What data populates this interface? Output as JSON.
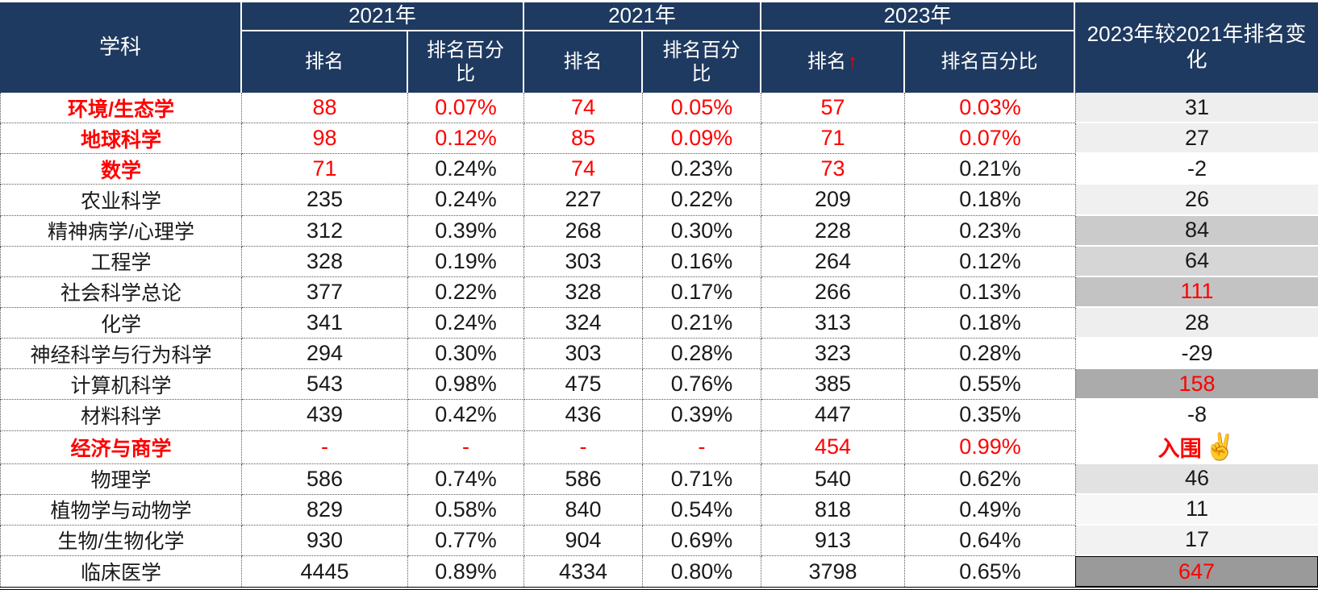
{
  "colors": {
    "header_bg": "#1f3a60",
    "header_text": "#ffffff",
    "accent_red": "#ff0000",
    "text": "#1a1a1a"
  },
  "table": {
    "header": {
      "subject_label": "学科",
      "groups": [
        {
          "year": "2021年",
          "rank": "排名",
          "pct": "排名百分比",
          "arrow": ""
        },
        {
          "year": "2021年",
          "rank": "排名",
          "pct": "排名百分比",
          "arrow": ""
        },
        {
          "year": "2023年",
          "rank": "排名",
          "pct": "排名百分比",
          "arrow": "↑"
        }
      ],
      "change_label": "2023年较2021年排名变化"
    },
    "rows": [
      {
        "subject": "环境/生态学",
        "subject_red": true,
        "values": [
          "88",
          "0.07%",
          "74",
          "0.05%",
          "57",
          "0.03%"
        ],
        "value_red": [
          true,
          true,
          true,
          true,
          true,
          true
        ],
        "change": "31",
        "change_red": false,
        "change_bold": false,
        "change_bg": "#eeeeee"
      },
      {
        "subject": "地球科学",
        "subject_red": true,
        "values": [
          "98",
          "0.12%",
          "85",
          "0.09%",
          "71",
          "0.07%"
        ],
        "value_red": [
          true,
          true,
          true,
          true,
          true,
          true
        ],
        "change": "27",
        "change_red": false,
        "change_bold": false,
        "change_bg": "#efefef"
      },
      {
        "subject": "数学",
        "subject_red": true,
        "values": [
          "71",
          "0.24%",
          "74",
          "0.23%",
          "73",
          "0.21%"
        ],
        "value_red": [
          true,
          false,
          true,
          false,
          true,
          false
        ],
        "change": "-2",
        "change_red": false,
        "change_bold": false,
        "change_bg": "#ffffff"
      },
      {
        "subject": "农业科学",
        "subject_red": false,
        "values": [
          "235",
          "0.24%",
          "227",
          "0.22%",
          "209",
          "0.18%"
        ],
        "value_red": [
          false,
          false,
          false,
          false,
          false,
          false
        ],
        "change": "26",
        "change_red": false,
        "change_bold": false,
        "change_bg": "#f0f0f0"
      },
      {
        "subject": "精神病学/心理学",
        "subject_red": false,
        "values": [
          "312",
          "0.39%",
          "268",
          "0.30%",
          "228",
          "0.23%"
        ],
        "value_red": [
          false,
          false,
          false,
          false,
          false,
          false
        ],
        "change": "84",
        "change_red": false,
        "change_bold": false,
        "change_bg": "#cbcbcb"
      },
      {
        "subject": "工程学",
        "subject_red": false,
        "values": [
          "328",
          "0.19%",
          "303",
          "0.16%",
          "264",
          "0.12%"
        ],
        "value_red": [
          false,
          false,
          false,
          false,
          false,
          false
        ],
        "change": "64",
        "change_red": false,
        "change_bold": false,
        "change_bg": "#d6d6d6"
      },
      {
        "subject": "社会科学总论",
        "subject_red": false,
        "values": [
          "377",
          "0.22%",
          "328",
          "0.17%",
          "266",
          "0.13%"
        ],
        "value_red": [
          false,
          false,
          false,
          false,
          false,
          false
        ],
        "change": "111",
        "change_red": true,
        "change_bold": false,
        "change_bg": "#c3c3c3"
      },
      {
        "subject": "化学",
        "subject_red": false,
        "values": [
          "341",
          "0.24%",
          "324",
          "0.21%",
          "313",
          "0.18%"
        ],
        "value_red": [
          false,
          false,
          false,
          false,
          false,
          false
        ],
        "change": "28",
        "change_red": false,
        "change_bold": false,
        "change_bg": "#eeeeee"
      },
      {
        "subject": "神经科学与行为科学",
        "subject_red": false,
        "values": [
          "294",
          "0.30%",
          "303",
          "0.28%",
          "323",
          "0.28%"
        ],
        "value_red": [
          false,
          false,
          false,
          false,
          false,
          false
        ],
        "change": "-29",
        "change_red": false,
        "change_bold": false,
        "change_bg": "#ffffff"
      },
      {
        "subject": "计算机科学",
        "subject_red": false,
        "values": [
          "543",
          "0.98%",
          "475",
          "0.76%",
          "385",
          "0.55%"
        ],
        "value_red": [
          false,
          false,
          false,
          false,
          false,
          false
        ],
        "change": "158",
        "change_red": true,
        "change_bold": false,
        "change_bg": "#ababab"
      },
      {
        "subject": "材料科学",
        "subject_red": false,
        "values": [
          "439",
          "0.42%",
          "436",
          "0.39%",
          "447",
          "0.35%"
        ],
        "value_red": [
          false,
          false,
          false,
          false,
          false,
          false
        ],
        "change": "-8",
        "change_red": false,
        "change_bold": false,
        "change_bg": "#ffffff"
      },
      {
        "subject": "经济与商学",
        "subject_red": true,
        "values": [
          "-",
          "-",
          "-",
          "-",
          "454",
          "0.99%"
        ],
        "value_red": [
          true,
          true,
          true,
          true,
          true,
          true
        ],
        "change": "入围",
        "change_red": true,
        "change_bold": true,
        "change_bg": "#ffffff",
        "change_emoji": "✌️"
      },
      {
        "subject": "物理学",
        "subject_red": false,
        "values": [
          "586",
          "0.74%",
          "586",
          "0.71%",
          "540",
          "0.62%"
        ],
        "value_red": [
          false,
          false,
          false,
          false,
          false,
          false
        ],
        "change": "46",
        "change_red": false,
        "change_bold": false,
        "change_bg": "#e2e2e2"
      },
      {
        "subject": "植物学与动物学",
        "subject_red": false,
        "values": [
          "829",
          "0.58%",
          "840",
          "0.54%",
          "818",
          "0.49%"
        ],
        "value_red": [
          false,
          false,
          false,
          false,
          false,
          false
        ],
        "change": "11",
        "change_red": false,
        "change_bold": false,
        "change_bg": "#f7f7f7"
      },
      {
        "subject": "生物/生物化学",
        "subject_red": false,
        "values": [
          "930",
          "0.77%",
          "904",
          "0.69%",
          "913",
          "0.64%"
        ],
        "value_red": [
          false,
          false,
          false,
          false,
          false,
          false
        ],
        "change": "17",
        "change_red": false,
        "change_bold": false,
        "change_bg": "#f2f2f2"
      },
      {
        "subject": "临床医学",
        "subject_red": false,
        "values": [
          "4445",
          "0.89%",
          "4334",
          "0.80%",
          "3798",
          "0.65%"
        ],
        "value_red": [
          false,
          false,
          false,
          false,
          false,
          false
        ],
        "change": "647",
        "change_red": true,
        "change_bold": false,
        "change_bg": "#9a9a9a",
        "change_boxed": true
      }
    ]
  },
  "chart_data": {
    "type": "table",
    "title": "",
    "columns": [
      "学科",
      "2021年 排名",
      "2021年 排名百分比",
      "2021年 排名",
      "2021年 排名百分比",
      "2023年 排名",
      "2023年 排名百分比",
      "2023年较2021年排名变化"
    ],
    "rows": [
      [
        "环境/生态学",
        "88",
        "0.07%",
        "74",
        "0.05%",
        "57",
        "0.03%",
        "31"
      ],
      [
        "地球科学",
        "98",
        "0.12%",
        "85",
        "0.09%",
        "71",
        "0.07%",
        "27"
      ],
      [
        "数学",
        "71",
        "0.24%",
        "74",
        "0.23%",
        "73",
        "0.21%",
        "-2"
      ],
      [
        "农业科学",
        "235",
        "0.24%",
        "227",
        "0.22%",
        "209",
        "0.18%",
        "26"
      ],
      [
        "精神病学/心理学",
        "312",
        "0.39%",
        "268",
        "0.30%",
        "228",
        "0.23%",
        "84"
      ],
      [
        "工程学",
        "328",
        "0.19%",
        "303",
        "0.16%",
        "264",
        "0.12%",
        "64"
      ],
      [
        "社会科学总论",
        "377",
        "0.22%",
        "328",
        "0.17%",
        "266",
        "0.13%",
        "111"
      ],
      [
        "化学",
        "341",
        "0.24%",
        "324",
        "0.21%",
        "313",
        "0.18%",
        "28"
      ],
      [
        "神经科学与行为科学",
        "294",
        "0.30%",
        "303",
        "0.28%",
        "323",
        "0.28%",
        "-29"
      ],
      [
        "计算机科学",
        "543",
        "0.98%",
        "475",
        "0.76%",
        "385",
        "0.55%",
        "158"
      ],
      [
        "材料科学",
        "439",
        "0.42%",
        "436",
        "0.39%",
        "447",
        "0.35%",
        "-8"
      ],
      [
        "经济与商学",
        "-",
        "-",
        "-",
        "-",
        "454",
        "0.99%",
        "入围✌️"
      ],
      [
        "物理学",
        "586",
        "0.74%",
        "586",
        "0.71%",
        "540",
        "0.62%",
        "46"
      ],
      [
        "植物学与动物学",
        "829",
        "0.58%",
        "840",
        "0.54%",
        "818",
        "0.49%",
        "11"
      ],
      [
        "生物/生物化学",
        "930",
        "0.77%",
        "904",
        "0.69%",
        "913",
        "0.64%",
        "17"
      ],
      [
        "临床医学",
        "4445",
        "0.89%",
        "4334",
        "0.80%",
        "3798",
        "0.65%",
        "647"
      ]
    ]
  }
}
